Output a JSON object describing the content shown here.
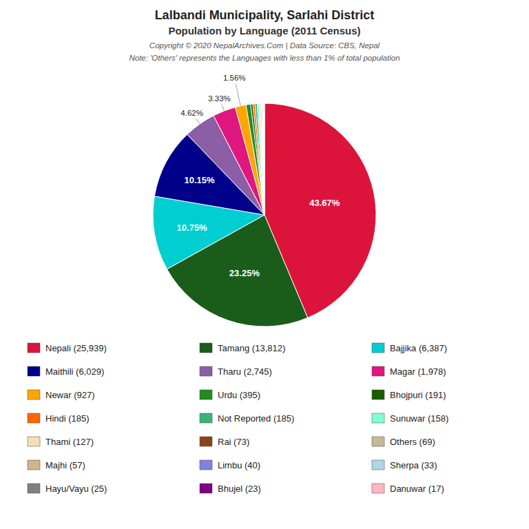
{
  "chart_data": {
    "type": "pie",
    "title": "Lalbandi Municipality, Sarlahi District",
    "subtitle": "Population by Language (2011 Census)",
    "annotations": [
      "Copyright © 2020 NepalArchives.Com | Data Source: CBS, Nepal",
      "Note: 'Others' represents the Languages with less than 1% of total population"
    ],
    "categories": [
      "Nepali (25,939)",
      "Tamang (13,812)",
      "Bajjika (6,387)",
      "Maithili (6,029)",
      "Tharu (2,745)",
      "Magar (1,978)",
      "Newar (927)",
      "Urdu (395)",
      "Bhojpuri (191)",
      "Hindi (185)",
      "Not Reported (185)",
      "Sunuwar (158)",
      "Thami (127)",
      "Rai (73)",
      "Others (69)",
      "Majhi (57)",
      "Limbu (40)",
      "Sherpa (33)",
      "Hayu/Vayu (25)",
      "Bhujel (23)",
      "Danuwar (17)"
    ],
    "values": [
      25939,
      13812,
      6387,
      6029,
      2745,
      1978,
      927,
      395,
      191,
      185,
      185,
      158,
      127,
      73,
      69,
      57,
      40,
      33,
      25,
      23,
      17
    ],
    "colors": [
      "#DC143C",
      "#1A5C1A",
      "#00CED1",
      "#00008B",
      "#8B5EA6",
      "#E0177E",
      "#FFA500",
      "#228B22",
      "#1A5C00",
      "#FF6600",
      "#3CB371",
      "#7FFFD4",
      "#F5DEB3",
      "#8B4513",
      "#C8B89A",
      "#D2B48C",
      "#8080E0",
      "#ADD8E6",
      "#808080",
      "#800080",
      "#FFB6C1"
    ],
    "percentages": [
      43.67,
      23.25,
      10.75,
      10.15,
      4.62,
      3.33,
      1.56,
      null,
      null,
      null,
      null,
      null,
      null,
      null,
      null,
      null,
      null,
      null,
      null,
      null,
      null
    ],
    "percentage_labels": [
      "43.67%",
      "23.25%",
      "10.75%",
      "10.15%",
      "4.62%",
      "3.33%",
      "1.56%",
      null,
      null,
      null,
      null,
      null,
      null,
      null,
      null,
      null,
      null,
      null,
      null,
      null,
      null
    ],
    "legend": "bottom"
  }
}
